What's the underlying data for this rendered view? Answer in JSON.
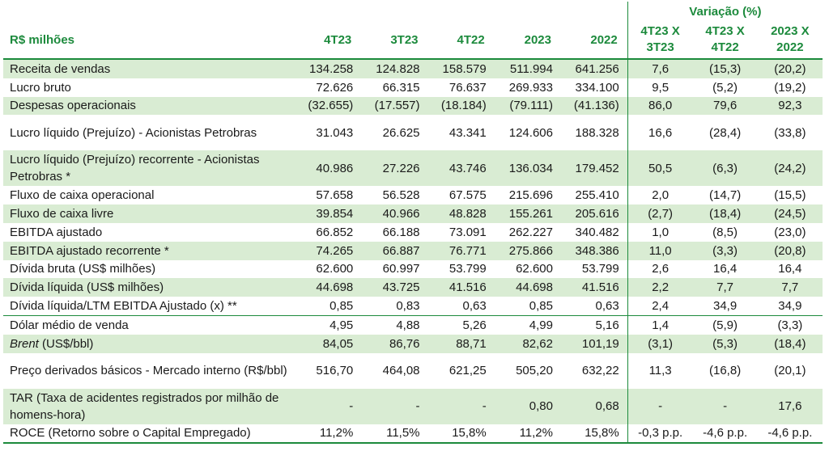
{
  "header": {
    "variacao": "Variação (%)",
    "unit": "R$ milhões",
    "cols": [
      "4T23",
      "3T23",
      "4T22",
      "2023",
      "2022"
    ],
    "var_cols": [
      {
        "l1": "4T23 X",
        "l2": "3T23"
      },
      {
        "l1": "4T23 X",
        "l2": "4T22"
      },
      {
        "l1": "2023 X",
        "l2": "2022"
      }
    ]
  },
  "rows": [
    {
      "label": "Receita de vendas",
      "values": [
        "134.258",
        "124.828",
        "158.579",
        "511.994",
        "641.256"
      ],
      "vars": [
        "7,6",
        "(15,3)",
        "(20,2)"
      ]
    },
    {
      "label": "Lucro bruto",
      "values": [
        "72.626",
        "66.315",
        "76.637",
        "269.933",
        "334.100"
      ],
      "vars": [
        "9,5",
        "(5,2)",
        "(19,2)"
      ]
    },
    {
      "label": "Despesas operacionais",
      "values": [
        "(32.655)",
        "(17.557)",
        "(18.184)",
        "(79.111)",
        "(41.136)"
      ],
      "vars": [
        "86,0",
        "79,6",
        "92,3"
      ]
    },
    {
      "label": "Lucro líquido (Prejuízo) - Acionistas Petrobras",
      "values": [
        "31.043",
        "26.625",
        "43.341",
        "124.606",
        "188.328"
      ],
      "vars": [
        "16,6",
        "(28,4)",
        "(33,8)"
      ]
    },
    {
      "label": "Lucro líquido (Prejuízo) recorrente - Acionistas Petrobras *",
      "values": [
        "40.986",
        "27.226",
        "43.746",
        "136.034",
        "179.452"
      ],
      "vars": [
        "50,5",
        "(6,3)",
        "(24,2)"
      ]
    },
    {
      "label": "Fluxo de caixa operacional",
      "values": [
        "57.658",
        "56.528",
        "67.575",
        "215.696",
        "255.410"
      ],
      "vars": [
        "2,0",
        "(14,7)",
        "(15,5)"
      ]
    },
    {
      "label": "Fluxo de caixa livre",
      "values": [
        "39.854",
        "40.966",
        "48.828",
        "155.261",
        "205.616"
      ],
      "vars": [
        "(2,7)",
        "(18,4)",
        "(24,5)"
      ]
    },
    {
      "label": "EBITDA ajustado",
      "values": [
        "66.852",
        "66.188",
        "73.091",
        "262.227",
        "340.482"
      ],
      "vars": [
        "1,0",
        "(8,5)",
        "(23,0)"
      ]
    },
    {
      "label": "EBITDA ajustado recorrente *",
      "values": [
        "74.265",
        "66.887",
        "76.771",
        "275.866",
        "348.386"
      ],
      "vars": [
        "11,0",
        "(3,3)",
        "(20,8)"
      ]
    },
    {
      "label": "Dívida bruta (US$ milhões)",
      "values": [
        "62.600",
        "60.997",
        "53.799",
        "62.600",
        "53.799"
      ],
      "vars": [
        "2,6",
        "16,4",
        "16,4"
      ]
    },
    {
      "label": "Dívida líquida (US$ milhões)",
      "values": [
        "44.698",
        "43.725",
        "41.516",
        "44.698",
        "41.516"
      ],
      "vars": [
        "2,2",
        "7,7",
        "7,7"
      ]
    },
    {
      "label": "Dívida líquida/LTM EBITDA Ajustado (x) **",
      "values": [
        "0,85",
        "0,83",
        "0,63",
        "0,85",
        "0,63"
      ],
      "vars": [
        "2,4",
        "34,9",
        "34,9"
      ]
    },
    {
      "label": "Dólar médio de venda",
      "values": [
        "4,95",
        "4,88",
        "5,26",
        "4,99",
        "5,16"
      ],
      "vars": [
        "1,4",
        "(5,9)",
        "(3,3)"
      ]
    },
    {
      "label_italic": "Brent",
      "label_rest": " (US$/bbl)",
      "values": [
        "84,05",
        "86,76",
        "88,71",
        "82,62",
        "101,19"
      ],
      "vars": [
        "(3,1)",
        "(5,3)",
        "(18,4)"
      ]
    },
    {
      "label": "Preço derivados básicos - Mercado interno (R$/bbl)",
      "values": [
        "516,70",
        "464,08",
        "621,25",
        "505,20",
        "632,22"
      ],
      "vars": [
        "11,3",
        "(16,8)",
        "(20,1)"
      ]
    },
    {
      "label": "TAR (Taxa de acidentes registrados por milhão de homens-hora)",
      "values": [
        "-",
        "-",
        "-",
        "0,80",
        "0,68"
      ],
      "vars": [
        "-",
        "-",
        "17,6"
      ]
    },
    {
      "label": "ROCE  (Retorno sobre o Capital Empregado)",
      "values": [
        "11,2%",
        "11,5%",
        "15,8%",
        "11,2%",
        "15,8%"
      ],
      "vars": [
        "-0,3 p.p.",
        "-4,6 p.p.",
        "-4,6 p.p."
      ]
    }
  ]
}
